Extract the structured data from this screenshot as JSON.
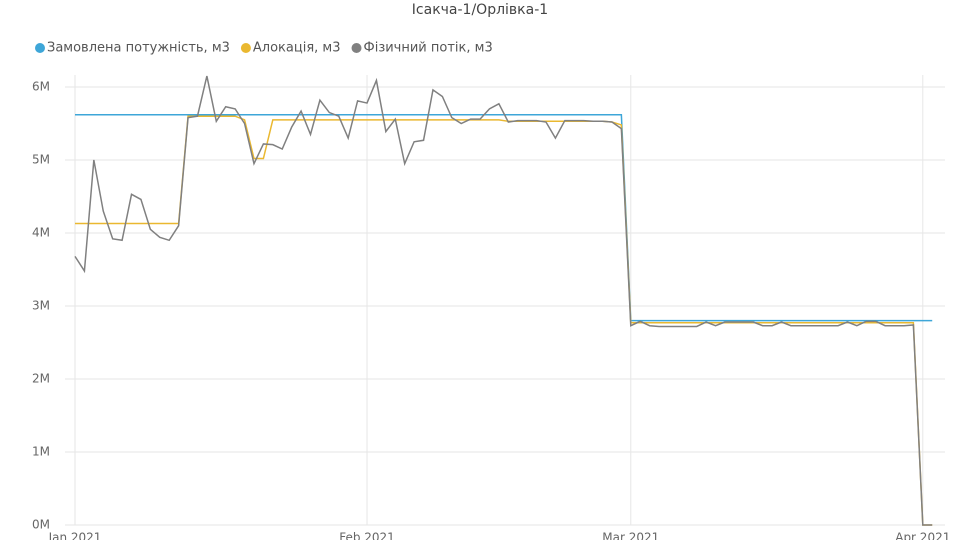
{
  "chart_data": {
    "type": "line",
    "title": "Ісакча-1/Орлівка-1",
    "categories": [
      "Jan 2021",
      null,
      null,
      null,
      null,
      null,
      null,
      null,
      null,
      null,
      null,
      null,
      null,
      null,
      null,
      null,
      null,
      null,
      null,
      null,
      null,
      null,
      null,
      null,
      null,
      null,
      null,
      null,
      null,
      null,
      null,
      "Feb 2021",
      null,
      null,
      null,
      null,
      null,
      null,
      null,
      null,
      null,
      null,
      null,
      null,
      null,
      null,
      null,
      null,
      null,
      null,
      null,
      null,
      null,
      null,
      null,
      null,
      null,
      null,
      null,
      "Mar 2021",
      null,
      null,
      null,
      null,
      null,
      null,
      null,
      null,
      null,
      null,
      null,
      null,
      null,
      null,
      null,
      null,
      null,
      null,
      null,
      null,
      null,
      null,
      null,
      null,
      null,
      null,
      null,
      null,
      null,
      null,
      "Apr 2021",
      null
    ],
    "series": [
      {
        "name": "Замовлена потужність, м3",
        "color": "#3ea6d8",
        "values": [
          5620000,
          5620000,
          5620000,
          5620000,
          5620000,
          5620000,
          5620000,
          5620000,
          5620000,
          5620000,
          5620000,
          5620000,
          5620000,
          5620000,
          5620000,
          5620000,
          5620000,
          5620000,
          5620000,
          5620000,
          5620000,
          5620000,
          5620000,
          5620000,
          5620000,
          5620000,
          5620000,
          5620000,
          5620000,
          5620000,
          5620000,
          5620000,
          5620000,
          5620000,
          5620000,
          5620000,
          5620000,
          5620000,
          5620000,
          5620000,
          5620000,
          5620000,
          5620000,
          5620000,
          5620000,
          5620000,
          5620000,
          5620000,
          5620000,
          5620000,
          5620000,
          5620000,
          5620000,
          5620000,
          5620000,
          5620000,
          5620000,
          5620000,
          5620000,
          2800000,
          2800000,
          2800000,
          2800000,
          2800000,
          2800000,
          2800000,
          2800000,
          2800000,
          2800000,
          2800000,
          2800000,
          2800000,
          2800000,
          2800000,
          2800000,
          2800000,
          2800000,
          2800000,
          2800000,
          2800000,
          2800000,
          2800000,
          2800000,
          2800000,
          2800000,
          2800000,
          2800000,
          2800000,
          2800000,
          2800000,
          2800000,
          2800000
        ]
      },
      {
        "name": "Алокація, м3",
        "color": "#eab830",
        "values": [
          4130000,
          4130000,
          4130000,
          4130000,
          4130000,
          4130000,
          4130000,
          4130000,
          4130000,
          4130000,
          4130000,
          4130000,
          5600000,
          5600000,
          5600000,
          5600000,
          5600000,
          5600000,
          5550000,
          5020000,
          5020000,
          5550000,
          5550000,
          5550000,
          5550000,
          5550000,
          5550000,
          5550000,
          5550000,
          5550000,
          5550000,
          5550000,
          5550000,
          5550000,
          5550000,
          5550000,
          5550000,
          5550000,
          5550000,
          5550000,
          5550000,
          5550000,
          5550000,
          5550000,
          5550000,
          5550000,
          5530000,
          5530000,
          5530000,
          5530000,
          5530000,
          5530000,
          5530000,
          5530000,
          5530000,
          5530000,
          5530000,
          5520000,
          5480000,
          2770000,
          2770000,
          2770000,
          2770000,
          2770000,
          2770000,
          2770000,
          2770000,
          2770000,
          2770000,
          2770000,
          2770000,
          2770000,
          2770000,
          2770000,
          2770000,
          2770000,
          2770000,
          2770000,
          2770000,
          2770000,
          2770000,
          2770000,
          2770000,
          2770000,
          2770000,
          2770000,
          2770000,
          2770000,
          2770000,
          2770000,
          0,
          0
        ]
      },
      {
        "name": "Фізичний потік, м3",
        "color": "#808080",
        "values": [
          3680000,
          3480000,
          5000000,
          4300000,
          3920000,
          3900000,
          4530000,
          4460000,
          4050000,
          3940000,
          3900000,
          4100000,
          5580000,
          5600000,
          6150000,
          5530000,
          5730000,
          5700000,
          5500000,
          4950000,
          5220000,
          5210000,
          5150000,
          5450000,
          5670000,
          5350000,
          5820000,
          5650000,
          5600000,
          5300000,
          5810000,
          5780000,
          6090000,
          5390000,
          5560000,
          4950000,
          5250000,
          5270000,
          5960000,
          5870000,
          5580000,
          5500000,
          5560000,
          5560000,
          5700000,
          5770000,
          5520000,
          5540000,
          5540000,
          5540000,
          5520000,
          5300000,
          5540000,
          5540000,
          5540000,
          5530000,
          5530000,
          5520000,
          5430000,
          2730000,
          2790000,
          2730000,
          2720000,
          2720000,
          2720000,
          2720000,
          2720000,
          2780000,
          2730000,
          2780000,
          2780000,
          2780000,
          2780000,
          2730000,
          2730000,
          2780000,
          2730000,
          2730000,
          2730000,
          2730000,
          2730000,
          2730000,
          2780000,
          2730000,
          2790000,
          2790000,
          2730000,
          2730000,
          2730000,
          2740000,
          0,
          0
        ]
      }
    ],
    "ylim": [
      0,
      6000000
    ],
    "yticks": [
      {
        "value": 0,
        "label": "0M"
      },
      {
        "value": 1000000,
        "label": "1M"
      },
      {
        "value": 2000000,
        "label": "2M"
      },
      {
        "value": 3000000,
        "label": "3M"
      },
      {
        "value": 4000000,
        "label": "4M"
      },
      {
        "value": 5000000,
        "label": "5M"
      },
      {
        "value": 6000000,
        "label": "6M"
      }
    ],
    "grid": true,
    "legend": "top-left"
  }
}
